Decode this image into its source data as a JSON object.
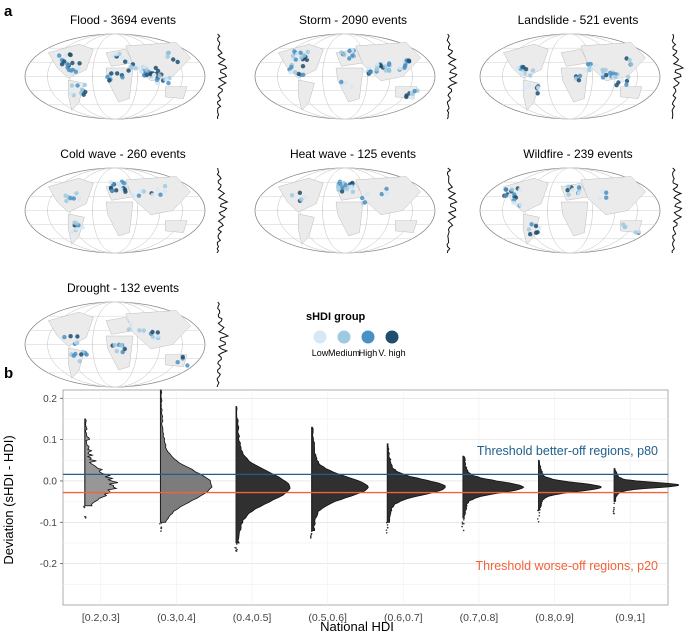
{
  "panel_a": {
    "label": "a",
    "maps": [
      {
        "hazard": "Flood",
        "title": "Flood - 3694  events"
      },
      {
        "hazard": "Storm",
        "title": "Storm - 2090  events"
      },
      {
        "hazard": "Landslide",
        "title": "Landslide - 521  events"
      },
      {
        "hazard": "Cold wave",
        "title": "Cold wave - 260  events"
      },
      {
        "hazard": "Heat wave",
        "title": "Heat wave - 125  events"
      },
      {
        "hazard": "Wildfire",
        "title": "Wildfire - 239  events"
      },
      {
        "hazard": "Drought",
        "title": "Drought - 132  events"
      }
    ],
    "legend": {
      "title": "sHDI group",
      "items": [
        {
          "label": "Low",
          "color": "#d6e8f6"
        },
        {
          "label": "Medium",
          "color": "#9ecae1"
        },
        {
          "label": "High",
          "color": "#4a90c4"
        },
        {
          "label": "V. high",
          "color": "#1f4e6e"
        }
      ]
    }
  },
  "panel_b": {
    "label": "b",
    "chart_data": {
      "type": "violin",
      "xlabel": "National HDI",
      "ylabel": "Deviation (sHDI - HDI)",
      "categories": [
        "[0.2,0.3]",
        "(0.3,0.4]",
        "(0.4,0.5]",
        "(0.5,0.6]",
        "(0.6,0.7]",
        "(0.7,0.8]",
        "(0.8,0.9]",
        "(0.9,1]"
      ],
      "ylim": [
        -0.3,
        0.22
      ],
      "yticks": [
        0.2,
        0.1,
        0.0,
        -0.1,
        -0.2
      ],
      "yticklabels": [
        "0.2",
        "0.1",
        "0.0",
        "-0.1",
        "-0.2"
      ],
      "grid": true,
      "thresholds": [
        {
          "label": "Threshold better-off regions, p80",
          "value": 0.016,
          "color": "#1f5f8b"
        },
        {
          "label": "Threshold worse-off regions, p20",
          "value": -0.028,
          "color": "#f4623a"
        }
      ],
      "ranges": [
        {
          "category": "[0.2,0.3]",
          "min": -0.06,
          "max": 0.15
        },
        {
          "category": "(0.3,0.4]",
          "min": -0.1,
          "max": 0.22
        },
        {
          "category": "(0.4,0.5]",
          "min": -0.15,
          "max": 0.18
        },
        {
          "category": "(0.5,0.6]",
          "min": -0.12,
          "max": 0.13
        },
        {
          "category": "(0.6,0.7]",
          "min": -0.1,
          "max": 0.09
        },
        {
          "category": "(0.7,0.8]",
          "min": -0.09,
          "max": 0.06
        },
        {
          "category": "(0.8,0.9]",
          "min": -0.07,
          "max": 0.05
        },
        {
          "category": "(0.9,1]",
          "min": -0.05,
          "max": 0.03
        }
      ],
      "peaks": [
        -0.01,
        -0.01,
        -0.015,
        -0.015,
        -0.015,
        -0.015,
        -0.015,
        -0.01
      ]
    }
  }
}
